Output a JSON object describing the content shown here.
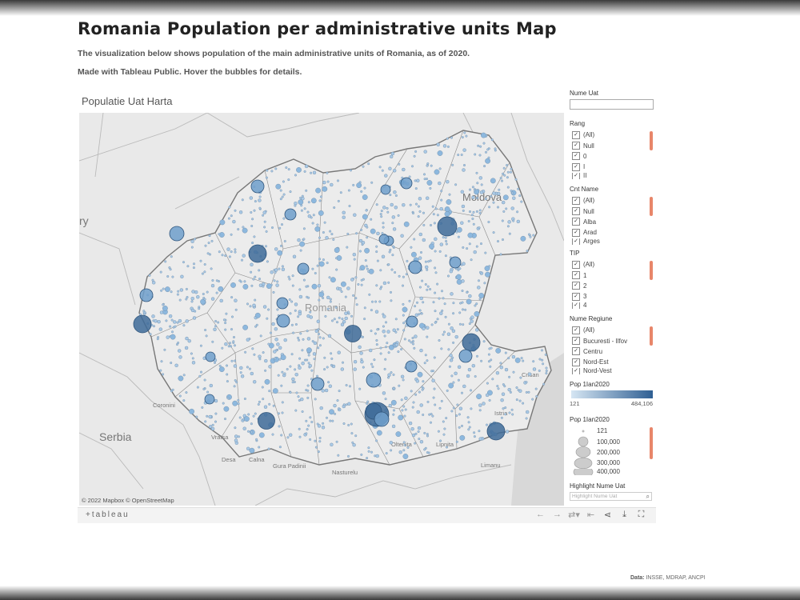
{
  "page": {
    "title": "Romania Population per administrative units Map",
    "intro1": "The visualization below shows population of the main administrative units of Romania, as of 2020.",
    "intro2": "Made with Tableau Public. Hover the bubbles for details.",
    "credit_label": "Data:",
    "credit_sources": "INSSE, MDRAP, ANCPI"
  },
  "viz": {
    "title": "Populatie Uat Harta",
    "attribution": "© 2022 Mapbox  © OpenStreetMap",
    "map_labels": [
      "Moldova",
      "Romania",
      "Serbia",
      "Coronini",
      "Vratsa",
      "Oltenita",
      "Lipnita",
      "Istria",
      "Crisan",
      "Limanu",
      "Desa",
      "Calna",
      "Gura Padinii",
      "Nasturelu",
      "ry"
    ],
    "colors": {
      "bubble_light": "#a9c9e6",
      "bubble_dark": "#3e6b99",
      "accent_scroll": "#e8866a"
    }
  },
  "filters": {
    "nume_uat": {
      "title": "Nume Uat",
      "value": ""
    },
    "rang": {
      "title": "Rang",
      "items": [
        "(All)",
        "Null",
        "0",
        "I",
        "II"
      ]
    },
    "cnt_name": {
      "title": "Cnt Name",
      "items": [
        "(All)",
        "Null",
        "Alba",
        "Arad",
        "Arges"
      ]
    },
    "tip": {
      "title": "TIP",
      "items": [
        "(All)",
        "1",
        "2",
        "3",
        "4"
      ]
    },
    "nume_regiune": {
      "title": "Nume Regiune",
      "items": [
        "(All)",
        "Bucuresti - Ilfov",
        "Centru",
        "Nord-Est",
        "Nord-Vest"
      ]
    },
    "checked_mark": "✓"
  },
  "legend_color": {
    "title": "Pop 1Ian2020",
    "min": "121",
    "max": "484,106"
  },
  "legend_size": {
    "title": "Pop 1Ian2020",
    "items": [
      "121",
      "100,000",
      "200,000",
      "300,000",
      "400,000"
    ]
  },
  "highlight": {
    "title": "Highlight Nume Uat",
    "placeholder": "Highlight Nume Uat",
    "icon": "search-icon"
  },
  "toolbar": {
    "logo": "+tableau",
    "icons": [
      "undo-icon",
      "redo-icon",
      "revert-icon",
      "pause-icon",
      "share-icon",
      "download-icon",
      "fullscreen-icon"
    ]
  }
}
